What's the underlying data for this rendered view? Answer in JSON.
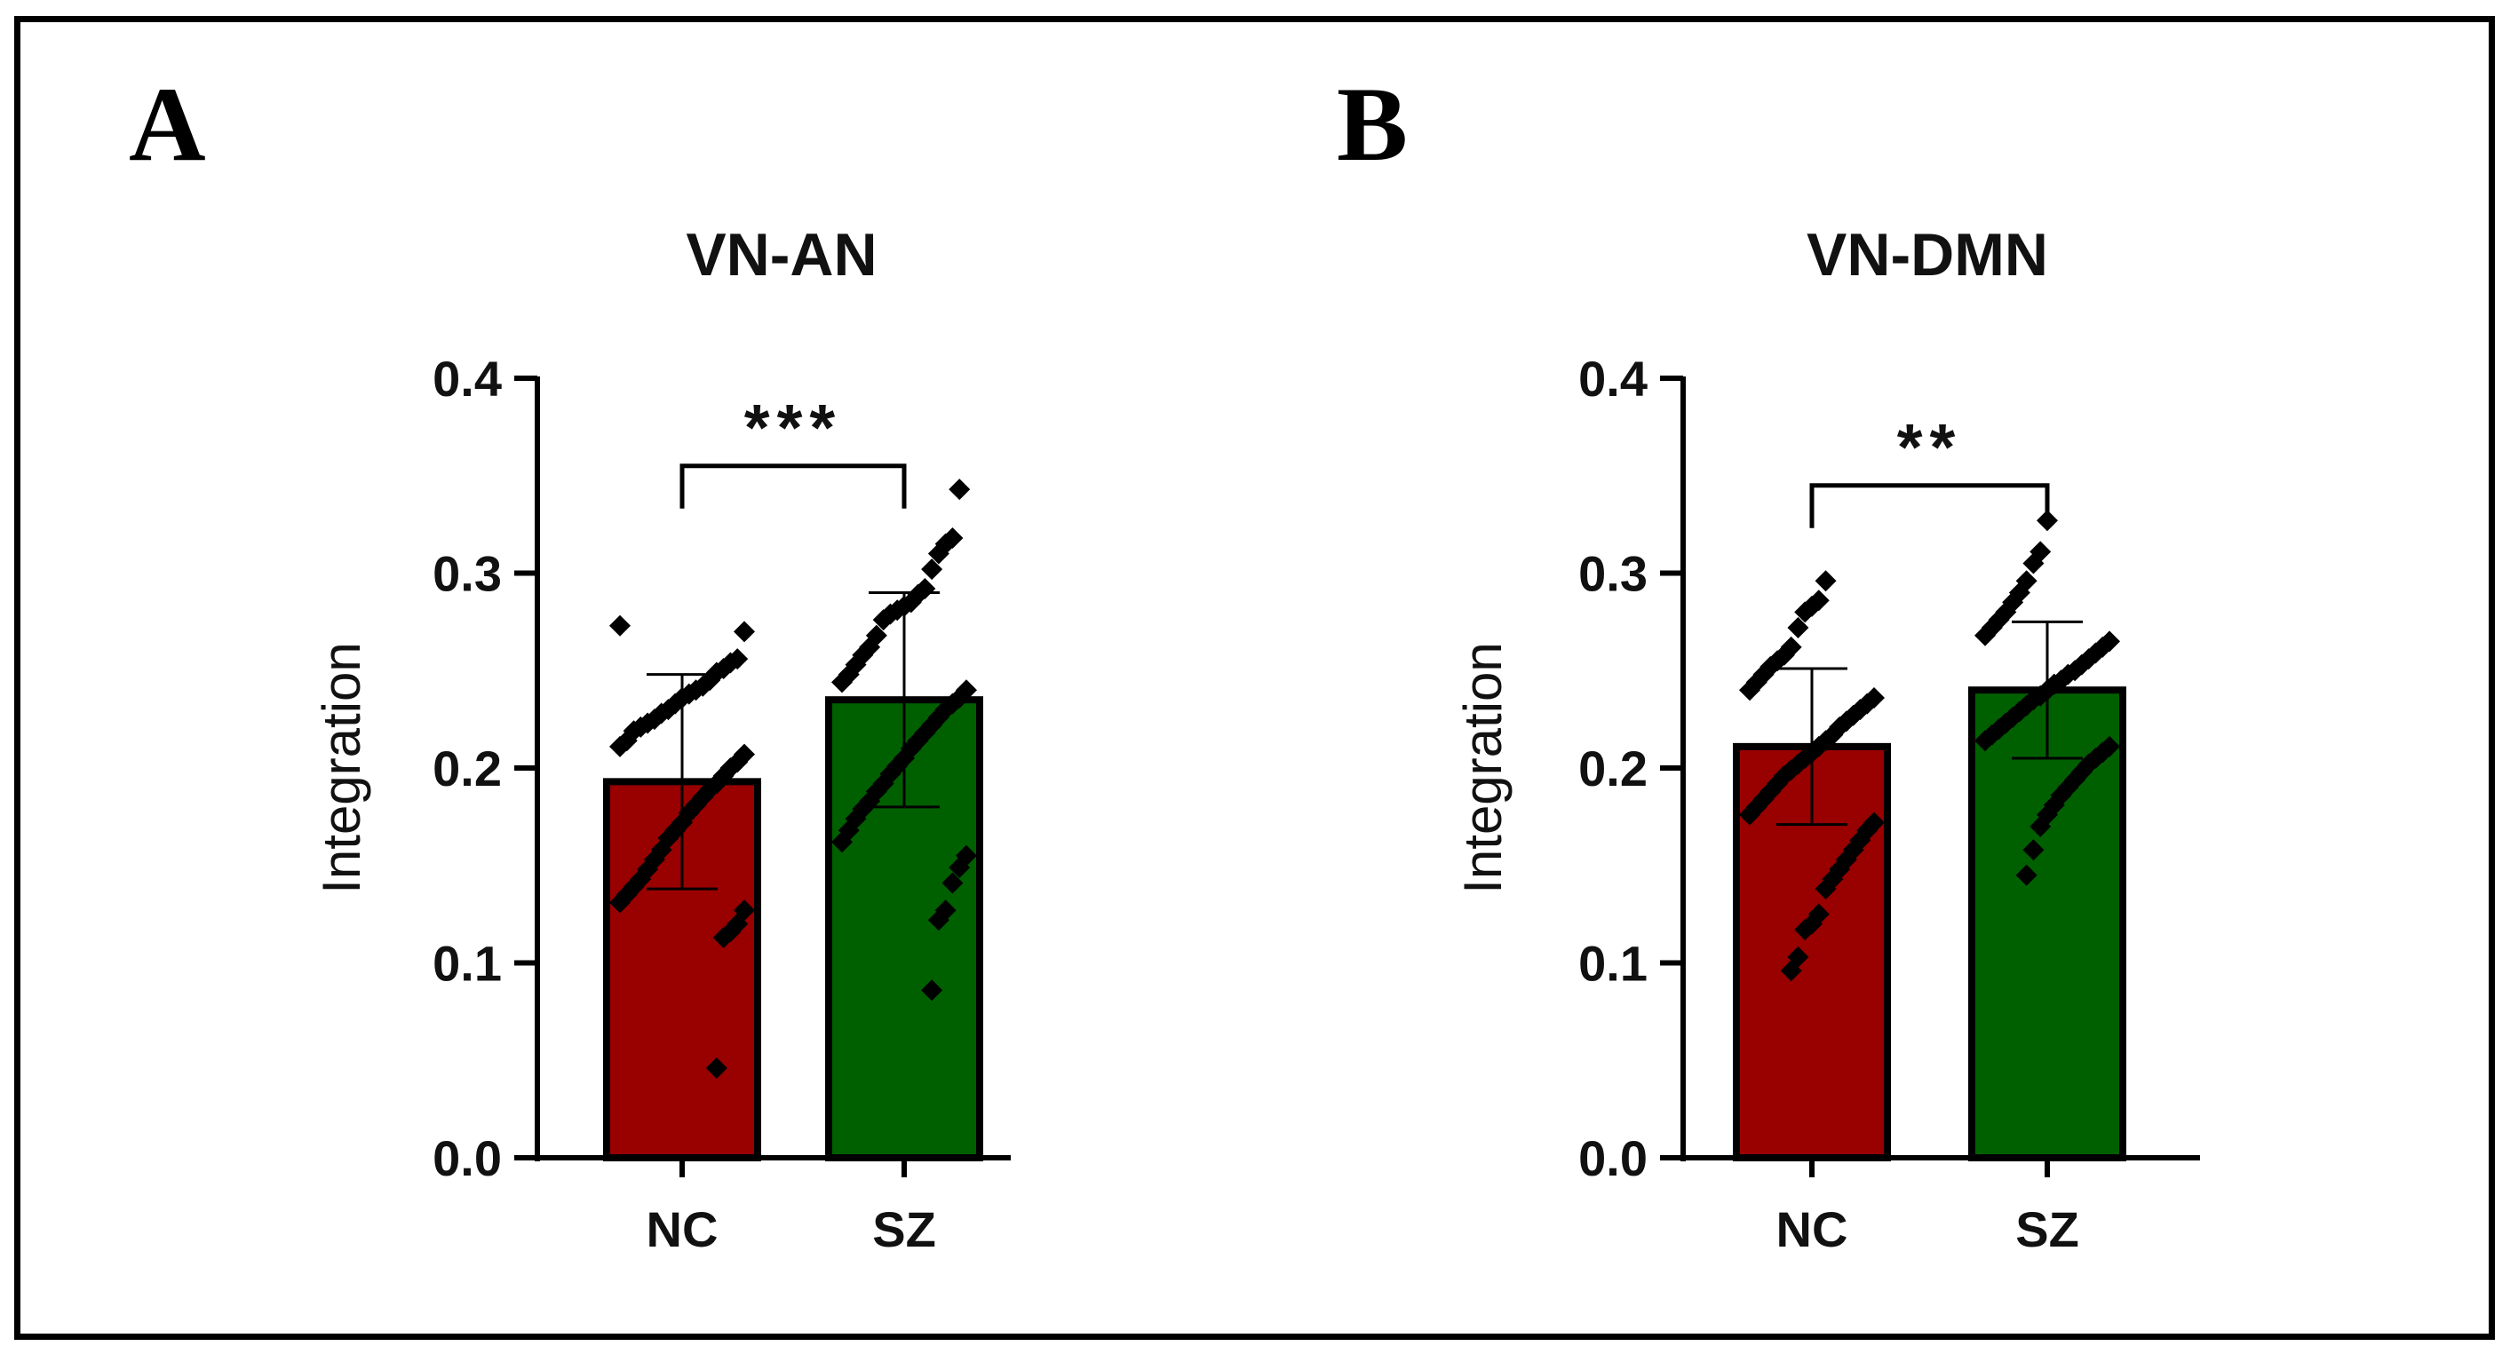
{
  "chart_data": [
    {
      "panel": "A",
      "type": "bar",
      "title": "VN-AN",
      "ylabel": "Integration",
      "xlabel": "",
      "ylim": [
        0,
        0.4
      ],
      "yticks": [
        "0.0",
        "0.1",
        "0.2",
        "0.3",
        "0.4"
      ],
      "yticks_values": [
        0,
        0.1,
        0.2,
        0.3,
        0.4
      ],
      "categories": [
        "NC",
        "SZ"
      ],
      "values": [
        0.193,
        0.235
      ],
      "errors": [
        0.055,
        0.055
      ],
      "colors": [
        "#990000",
        "#006000"
      ],
      "significance": "***",
      "points": [
        [
          0.273,
          0.27,
          0.256,
          0.254,
          0.251,
          0.249,
          0.245,
          0.242,
          0.24,
          0.238,
          0.236,
          0.233,
          0.23,
          0.228,
          0.225,
          0.223,
          0.221,
          0.219,
          0.214,
          0.211,
          0.207,
          0.203,
          0.2,
          0.196,
          0.192,
          0.189,
          0.185,
          0.181,
          0.177,
          0.172,
          0.168,
          0.164,
          0.158,
          0.153,
          0.148,
          0.143,
          0.139,
          0.135,
          0.131,
          0.127,
          0.12,
          0.116,
          0.113,
          0.046
        ],
        [
          0.343,
          0.318,
          0.315,
          0.31,
          0.302,
          0.292,
          0.289,
          0.285,
          0.283,
          0.281,
          0.279,
          0.276,
          0.268,
          0.262,
          0.258,
          0.253,
          0.248,
          0.244,
          0.24,
          0.236,
          0.233,
          0.23,
          0.226,
          0.222,
          0.218,
          0.214,
          0.21,
          0.205,
          0.201,
          0.197,
          0.192,
          0.188,
          0.183,
          0.179,
          0.174,
          0.168,
          0.162,
          0.155,
          0.149,
          0.141,
          0.127,
          0.122,
          0.086
        ]
      ]
    },
    {
      "panel": "B",
      "type": "bar",
      "title": "VN-DMN",
      "ylabel": "Integration",
      "xlabel": "",
      "ylim": [
        0,
        0.4
      ],
      "yticks": [
        "0.0",
        "0.1",
        "0.2",
        "0.3",
        "0.4"
      ],
      "yticks_values": [
        0,
        0.1,
        0.2,
        0.3,
        0.4
      ],
      "categories": [
        "NC",
        "SZ"
      ],
      "values": [
        0.211,
        0.24
      ],
      "errors": [
        0.04,
        0.035
      ],
      "colors": [
        "#990000",
        "#006000"
      ],
      "significance": "**",
      "points": [
        [
          0.296,
          0.286,
          0.283,
          0.28,
          0.272,
          0.262,
          0.258,
          0.255,
          0.252,
          0.248,
          0.244,
          0.24,
          0.236,
          0.233,
          0.23,
          0.227,
          0.224,
          0.221,
          0.217,
          0.214,
          0.211,
          0.208,
          0.205,
          0.202,
          0.199,
          0.196,
          0.192,
          0.188,
          0.184,
          0.18,
          0.176,
          0.172,
          0.168,
          0.163,
          0.158,
          0.153,
          0.148,
          0.143,
          0.138,
          0.125,
          0.12,
          0.117,
          0.103,
          0.096
        ],
        [
          0.327,
          0.311,
          0.305,
          0.296,
          0.29,
          0.285,
          0.28,
          0.276,
          0.272,
          0.268,
          0.265,
          0.262,
          0.259,
          0.256,
          0.253,
          0.25,
          0.248,
          0.245,
          0.243,
          0.24,
          0.237,
          0.235,
          0.232,
          0.229,
          0.226,
          0.223,
          0.22,
          0.217,
          0.214,
          0.211,
          0.208,
          0.205,
          0.202,
          0.198,
          0.194,
          0.19,
          0.186,
          0.181,
          0.176,
          0.17,
          0.158,
          0.145
        ]
      ]
    }
  ]
}
